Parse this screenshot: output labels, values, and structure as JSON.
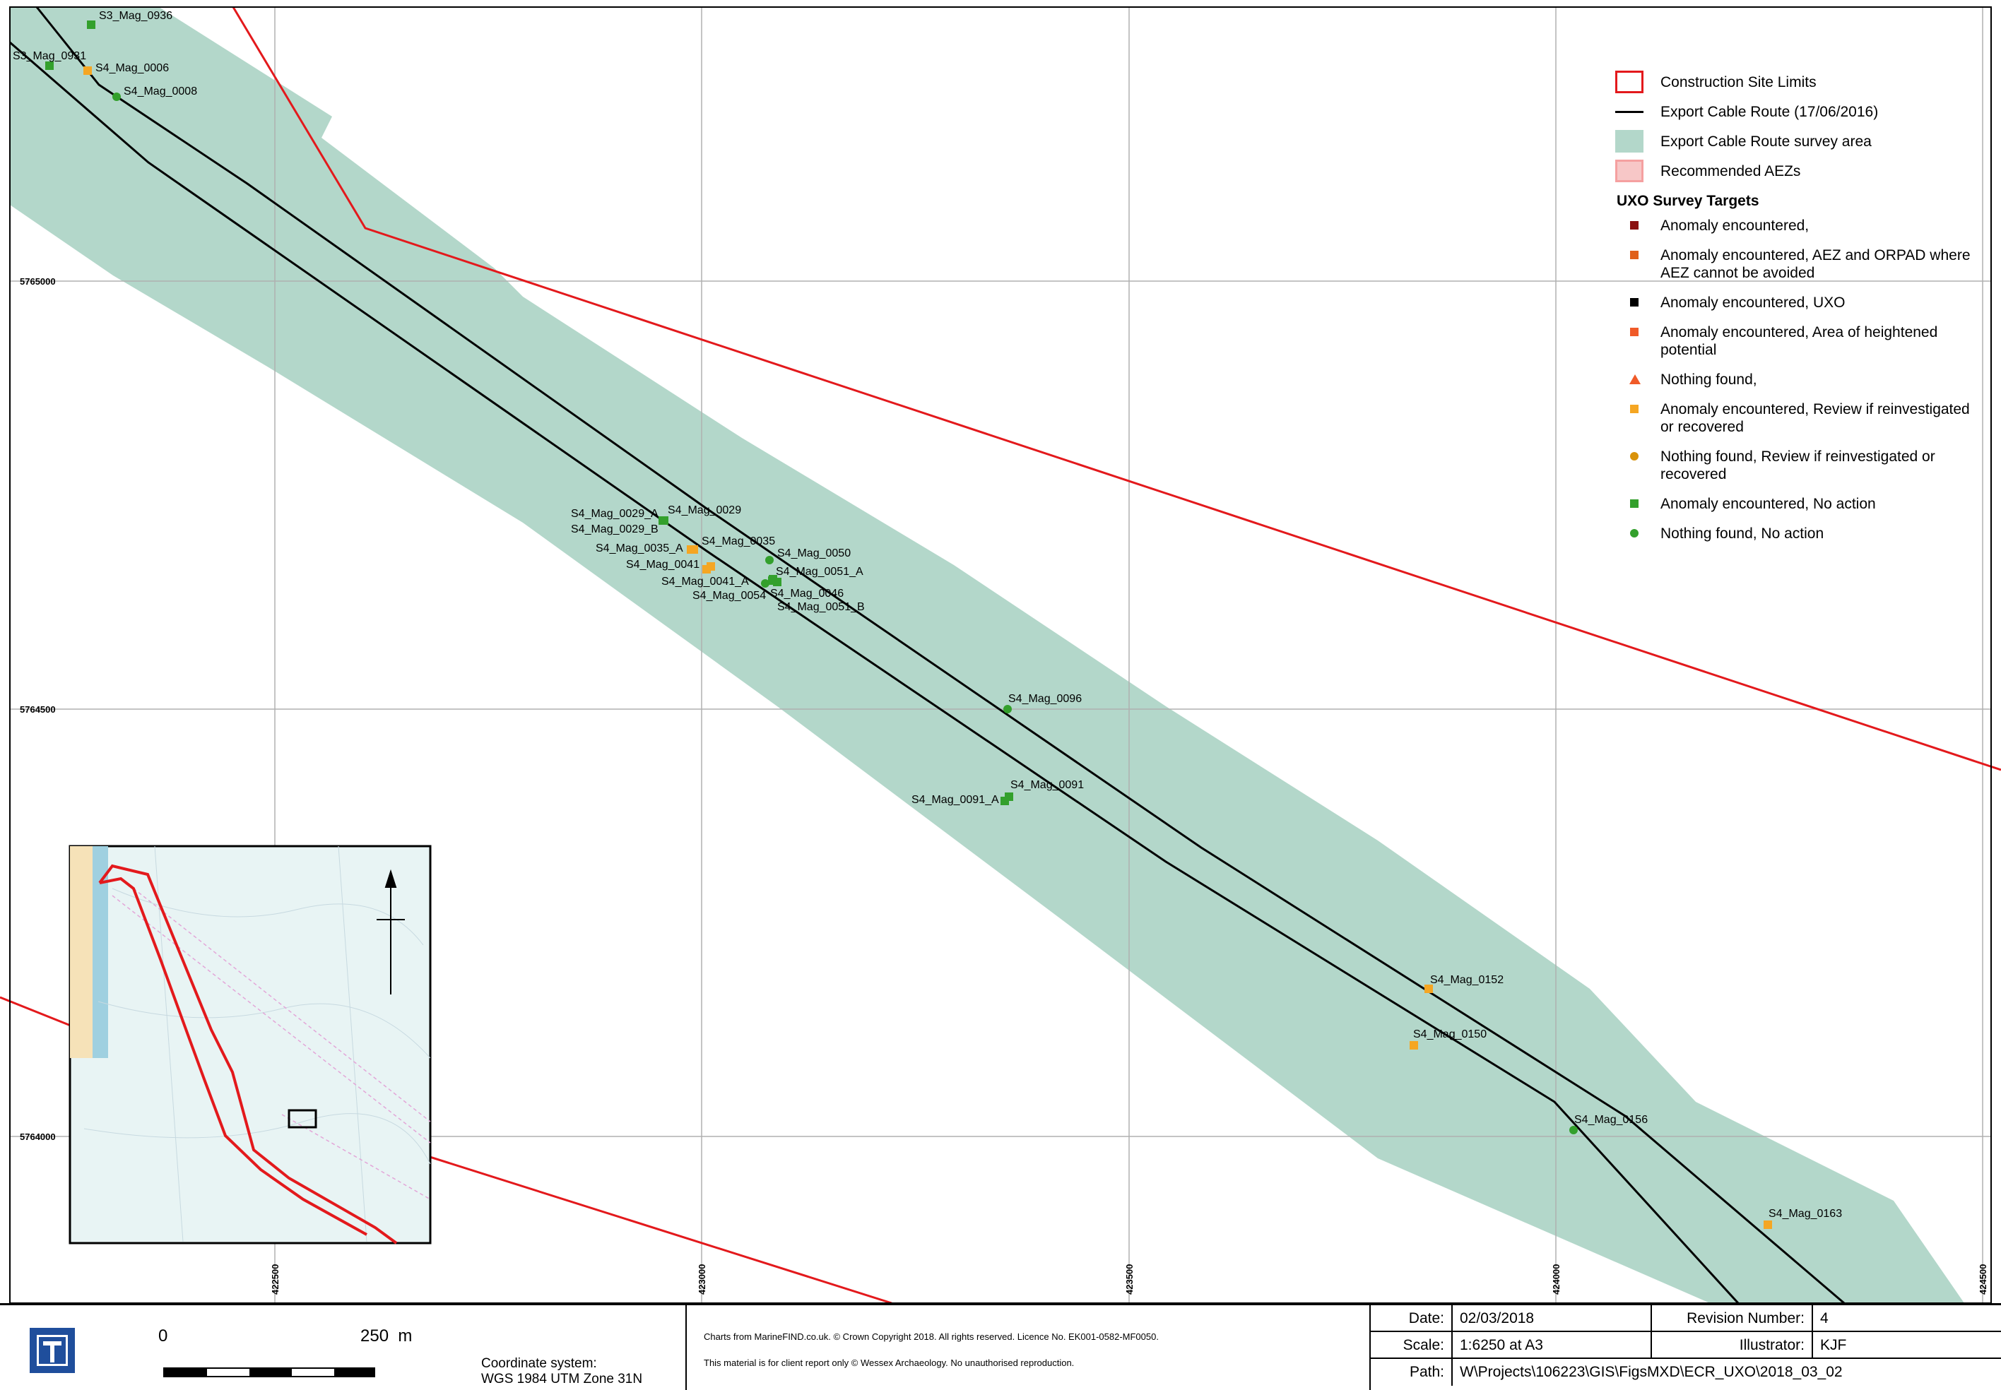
{
  "map": {
    "grid_eastings": [
      "422500",
      "423000",
      "423500",
      "424000",
      "424500"
    ],
    "grid_northings": [
      "5765000",
      "5764500",
      "5764000"
    ],
    "targets": [
      {
        "label": "S3_Mag_0936",
        "symbol": "square",
        "color": "#33a02c"
      },
      {
        "label": "S3_Mag_0931",
        "symbol": "square",
        "color": "#33a02c"
      },
      {
        "label": "S4_Mag_0006",
        "symbol": "square",
        "color": "#f5a623"
      },
      {
        "label": "S4_Mag_0008",
        "symbol": "circle",
        "color": "#33a02c"
      },
      {
        "label": "S4_Mag_0029_A",
        "symbol": "square",
        "color": "#33a02c"
      },
      {
        "label": "S4_Mag_0029",
        "symbol": "square",
        "color": "#33a02c"
      },
      {
        "label": "S4_Mag_0029_B",
        "symbol": "square",
        "color": "#33a02c"
      },
      {
        "label": "S4_Mag_0035",
        "symbol": "square",
        "color": "#f5a623"
      },
      {
        "label": "S4_Mag_0035_A",
        "symbol": "square",
        "color": "#f5a623"
      },
      {
        "label": "S4_Mag_0041",
        "symbol": "square",
        "color": "#f5a623"
      },
      {
        "label": "S4_Mag_0041_A",
        "symbol": "square",
        "color": "#f5a623"
      },
      {
        "label": "S4_Mag_0050",
        "symbol": "circle",
        "color": "#33a02c"
      },
      {
        "label": "S4_Mag_0051_A",
        "symbol": "square",
        "color": "#33a02c"
      },
      {
        "label": "S4_Mag_0054",
        "symbol": "circle",
        "color": "#33a02c"
      },
      {
        "label": "S4_Mag_0046",
        "symbol": "square",
        "color": "#33a02c"
      },
      {
        "label": "S4_Mag_0051_B",
        "symbol": "square",
        "color": "#33a02c"
      },
      {
        "label": "S4_Mag_0096",
        "symbol": "circle",
        "color": "#33a02c"
      },
      {
        "label": "S4_Mag_0091",
        "symbol": "square",
        "color": "#33a02c"
      },
      {
        "label": "S4_Mag_0091_A",
        "symbol": "square",
        "color": "#33a02c"
      },
      {
        "label": "S4_Mag_0152",
        "symbol": "square",
        "color": "#f5a623"
      },
      {
        "label": "S4_Mag_0150",
        "symbol": "square",
        "color": "#f5a623"
      },
      {
        "label": "S4_Mag_0156",
        "symbol": "circle",
        "color": "#33a02c"
      },
      {
        "label": "S4_Mag_0163",
        "symbol": "square",
        "color": "#f5a623"
      }
    ]
  },
  "legend": {
    "items": [
      {
        "label": "Construction Site Limits",
        "symbol": "red-outline-box",
        "color": "#e3191c"
      },
      {
        "label": "Export Cable Route (17/06/2016)",
        "symbol": "black-line",
        "color": "#000000"
      },
      {
        "label": "Export Cable Route survey area",
        "symbol": "filled-box",
        "color": "#b3d7ca"
      },
      {
        "label": "Recommended AEZs",
        "symbol": "pink-box",
        "color": "#f7c7c7"
      }
    ],
    "heading": "UXO Survey Targets",
    "targets": [
      {
        "label": "Anomaly encountered,",
        "symbol": "square",
        "color": "#8b1010"
      },
      {
        "label": "Anomaly encountered, AEZ and ORPAD where AEZ cannot be avoided",
        "symbol": "square",
        "color": "#e0601a"
      },
      {
        "label": "Anomaly encountered, UXO",
        "symbol": "square",
        "color": "#000000"
      },
      {
        "label": "Anomaly encountered, Area of heightened potential",
        "symbol": "square",
        "color": "#f05a28"
      },
      {
        "label": "Nothing found,",
        "symbol": "triangle",
        "color": "#f05a28"
      },
      {
        "label": "Anomaly encountered, Review if reinvestigated or recovered",
        "symbol": "square",
        "color": "#f5a623"
      },
      {
        "label": "Nothing found, Review if reinvestigated or recovered",
        "symbol": "circle",
        "color": "#d9920a"
      },
      {
        "label": "Anomaly encountered, No action",
        "symbol": "square",
        "color": "#33a02c"
      },
      {
        "label": "Nothing found, No action",
        "symbol": "circle",
        "color": "#33a02c"
      }
    ]
  },
  "footer": {
    "scale_zero": "0",
    "scale_end": "250  m",
    "coord_label": "Coordinate system:",
    "coord_value": "WGS 1984 UTM Zone 31N",
    "copyright": "Charts from MarineFIND.co.uk. © Crown Copyright 2018. All rights reserved. Licence No. EK001-0582-MF0050.",
    "usage": "This material is for client report only © Wessex Archaeology. No unauthorised reproduction.",
    "date_label": "Date:",
    "date_value": "02/03/2018",
    "revision_label": "Revision Number:",
    "revision_value": "4",
    "scale_label": "Scale:",
    "scale_value": "1:6250 at A3",
    "illustrator_label": "Illustrator:",
    "illustrator_value": "KJF",
    "path_label": "Path:",
    "path_value": "W\\Projects\\106223\\GIS\\FigsMXD\\ECR_UXO\\2018_03_02"
  }
}
